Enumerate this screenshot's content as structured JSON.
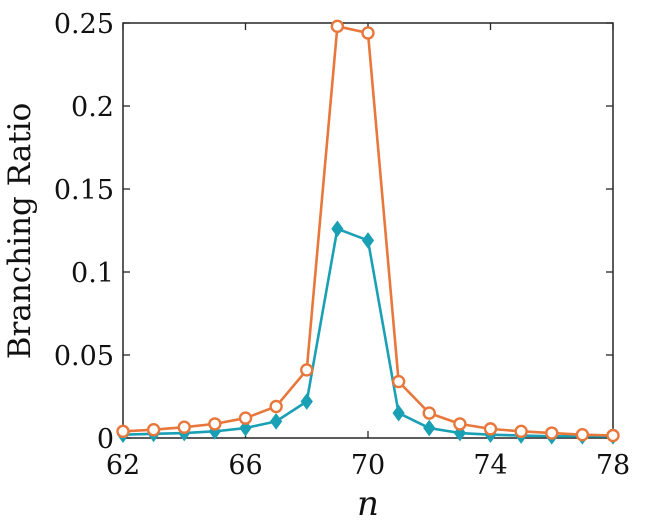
{
  "chart_data": {
    "type": "line",
    "xlabel": "n",
    "ylabel": "Branching Ratio",
    "xlim": [
      62,
      78
    ],
    "ylim": [
      0,
      0.25
    ],
    "xticks": [
      62,
      66,
      70,
      74,
      78
    ],
    "yticks": [
      0,
      0.05,
      0.1,
      0.15,
      0.2,
      0.25
    ],
    "xtick_labels": [
      "62",
      "66",
      "70",
      "74",
      "78"
    ],
    "ytick_labels": [
      "0",
      "0.05",
      "0.1",
      "0.15",
      "0.2",
      "0.25"
    ],
    "grid": false,
    "box": true,
    "series": [
      {
        "color": "#E8773B",
        "marker": "circle-open",
        "x": [
          62,
          63,
          64,
          65,
          66,
          67,
          68,
          69,
          70,
          71,
          72,
          73,
          74,
          75,
          76,
          77,
          78
        ],
        "y": [
          0.004,
          0.005,
          0.0065,
          0.0085,
          0.012,
          0.019,
          0.041,
          0.248,
          0.244,
          0.034,
          0.015,
          0.0085,
          0.0055,
          0.004,
          0.003,
          0.002,
          0.0015
        ]
      },
      {
        "color": "#1AA0B5",
        "marker": "diamond-filled",
        "x": [
          62,
          63,
          64,
          65,
          66,
          67,
          68,
          69,
          70,
          71,
          72,
          73,
          74,
          75,
          76,
          77,
          78
        ],
        "y": [
          0.002,
          0.0025,
          0.003,
          0.004,
          0.006,
          0.01,
          0.022,
          0.126,
          0.119,
          0.015,
          0.006,
          0.003,
          0.002,
          0.0015,
          0.001,
          0.001,
          0.001
        ]
      }
    ]
  }
}
